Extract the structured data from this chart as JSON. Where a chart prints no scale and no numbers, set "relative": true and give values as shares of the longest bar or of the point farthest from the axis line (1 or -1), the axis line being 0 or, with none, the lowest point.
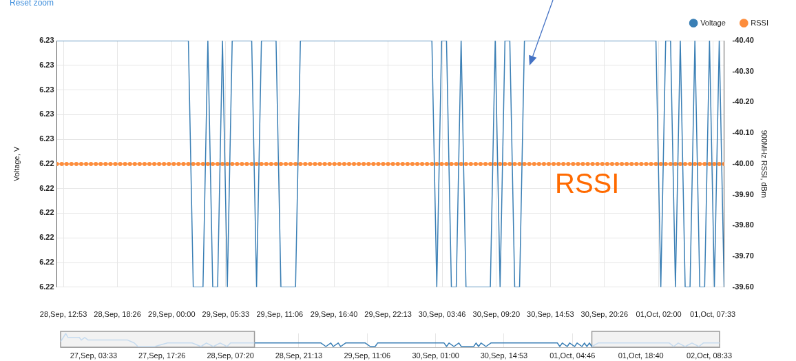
{
  "chart_data": [
    {
      "type": "line",
      "ylabel": "Voltage, V",
      "y2label": "900MHz RSSI, dBm",
      "annotations": [
        "Reset zoom",
        "RSSI"
      ],
      "xlim": [
        "--09-28T12:13",
        "--10-01T08:43"
      ],
      "xticks": [
        {
          "value": "--09-28T12:53",
          "label": "28,Sep, 12:53"
        },
        {
          "value": "--09-28T18:26",
          "label": "28,Sep, 18:26"
        },
        {
          "value": "--09-29T00:00",
          "label": "29,Sep, 00:00"
        },
        {
          "value": "--09-29T05:33",
          "label": "29,Sep, 05:33"
        },
        {
          "value": "--09-29T11:06",
          "label": "29,Sep, 11:06"
        },
        {
          "value": "--09-29T16:40",
          "label": "29,Sep, 16:40"
        },
        {
          "value": "--09-29T22:13",
          "label": "29,Sep, 22:13"
        },
        {
          "value": "--09-30T03:46",
          "label": "30,Sep, 03:46"
        },
        {
          "value": "--09-30T09:20",
          "label": "30,Sep, 09:20"
        },
        {
          "value": "--09-30T14:53",
          "label": "30,Sep, 14:53"
        },
        {
          "value": "--09-30T20:26",
          "label": "30,Sep, 20:26"
        },
        {
          "value": "--10-01T02:00",
          "label": "01,Oct, 02:00"
        },
        {
          "value": "--10-01T07:33",
          "label": "01,Oct, 07:33"
        }
      ],
      "ylim": [
        6.2244,
        6.2254
      ],
      "yticks": [
        {
          "value": 6.2244,
          "label": "6.22"
        },
        {
          "value": 6.2245,
          "label": "6.22"
        },
        {
          "value": 6.2246,
          "label": "6.22"
        },
        {
          "value": 6.2247,
          "label": "6.22"
        },
        {
          "value": 6.2248,
          "label": "6.22"
        },
        {
          "value": 6.2249,
          "label": "6.22"
        },
        {
          "value": 6.225,
          "label": "6.23"
        },
        {
          "value": 6.2251,
          "label": "6.23"
        },
        {
          "value": 6.2252,
          "label": "6.23"
        },
        {
          "value": 6.2253,
          "label": "6.23"
        },
        {
          "value": 6.2254,
          "label": "6.23"
        }
      ],
      "y2lim": [
        -39.6,
        -40.4
      ],
      "y2ticks": [
        {
          "value": -40.4,
          "label": "-40.40"
        },
        {
          "value": -40.3,
          "label": "-40.30"
        },
        {
          "value": -40.2,
          "label": "-40.20"
        },
        {
          "value": -40.1,
          "label": "-40.10"
        },
        {
          "value": -40,
          "label": "-40.00"
        },
        {
          "value": -39.9,
          "label": "-39.90"
        },
        {
          "value": -39.8,
          "label": "-39.80"
        },
        {
          "value": -39.7,
          "label": "-39.70"
        },
        {
          "value": -39.6,
          "label": "-39.60"
        }
      ],
      "grid": true,
      "legend": "top right",
      "line_style": "solid",
      "marker": "circle",
      "x": [
        "--09-28T12:13",
        "--09-28T12:43",
        "--09-28T13:13",
        "--09-28T13:43",
        "--09-28T14:13",
        "--09-28T14:43",
        "--09-28T15:13",
        "--09-28T15:43",
        "--09-28T16:13",
        "--09-28T16:43",
        "--09-28T17:13",
        "--09-28T17:43",
        "--09-28T18:13",
        "--09-28T18:43",
        "--09-28T19:13",
        "--09-28T19:43",
        "--09-28T20:13",
        "--09-28T20:43",
        "--09-28T21:13",
        "--09-28T21:43",
        "--09-28T22:13",
        "--09-28T22:43",
        "--09-28T23:13",
        "--09-28T23:43",
        "--09-29T00:13",
        "--09-29T00:43",
        "--09-29T01:13",
        "--09-29T01:43",
        "--09-29T02:13",
        "--09-29T02:43",
        "--09-29T03:13",
        "--09-29T03:43",
        "--09-29T04:13",
        "--09-29T04:43",
        "--09-29T05:13",
        "--09-29T05:43",
        "--09-29T06:13",
        "--09-29T06:43",
        "--09-29T07:13",
        "--09-29T07:43",
        "--09-29T08:13",
        "--09-29T08:43",
        "--09-29T09:13",
        "--09-29T09:43",
        "--09-29T10:13",
        "--09-29T10:43",
        "--09-29T11:13",
        "--09-29T11:43",
        "--09-29T12:13",
        "--09-29T12:43",
        "--09-29T13:13",
        "--09-29T13:43",
        "--09-29T14:13",
        "--09-29T14:43",
        "--09-29T15:13",
        "--09-29T15:43",
        "--09-29T16:13",
        "--09-29T16:43",
        "--09-29T17:13",
        "--09-29T17:43",
        "--09-29T18:13",
        "--09-29T18:43",
        "--09-29T19:13",
        "--09-29T19:43",
        "--09-29T20:13",
        "--09-29T20:43",
        "--09-29T21:13",
        "--09-29T21:43",
        "--09-29T22:13",
        "--09-29T22:43",
        "--09-29T23:13",
        "--09-29T23:43",
        "--09-30T00:13",
        "--09-30T00:43",
        "--09-30T01:13",
        "--09-30T01:43",
        "--09-30T02:13",
        "--09-30T02:43",
        "--09-30T03:13",
        "--09-30T03:43",
        "--09-30T04:13",
        "--09-30T04:43",
        "--09-30T05:13",
        "--09-30T05:43",
        "--09-30T06:13",
        "--09-30T06:43",
        "--09-30T07:13",
        "--09-30T07:43",
        "--09-30T08:13",
        "--09-30T08:43",
        "--09-30T09:13",
        "--09-30T09:43",
        "--09-30T10:13",
        "--09-30T10:43",
        "--09-30T11:13",
        "--09-30T11:43",
        "--09-30T12:13",
        "--09-30T12:43",
        "--09-30T13:13",
        "--09-30T13:43",
        "--09-30T14:13",
        "--09-30T14:43",
        "--09-30T15:13",
        "--09-30T15:43",
        "--09-30T16:13",
        "--09-30T16:43",
        "--09-30T17:13",
        "--09-30T17:43",
        "--09-30T18:13",
        "--09-30T18:43",
        "--09-30T19:13",
        "--09-30T19:43",
        "--09-30T20:13",
        "--09-30T20:43",
        "--09-30T21:13",
        "--09-30T21:43",
        "--09-30T22:13",
        "--09-30T22:43",
        "--09-30T23:13",
        "--09-30T23:43",
        "--10-01T00:13",
        "--10-01T00:43",
        "--10-01T01:13",
        "--10-01T01:43",
        "--10-01T02:13",
        "--10-01T02:43",
        "--10-01T03:13",
        "--10-01T03:43",
        "--10-01T04:13",
        "--10-01T04:43",
        "--10-01T05:13",
        "--10-01T05:43",
        "--10-01T06:13",
        "--10-01T06:43",
        "--10-01T07:13",
        "--10-01T07:43",
        "--10-01T08:13",
        "--10-01T08:43"
      ],
      "series": [
        {
          "name": "Voltage",
          "color": "#3a7fb5",
          "marker": "none",
          "values": [
            6.2254,
            6.2254,
            6.2254,
            6.2254,
            6.2254,
            6.2254,
            6.2254,
            6.2254,
            6.2254,
            6.2254,
            6.2254,
            6.2254,
            6.2254,
            6.2254,
            6.2254,
            6.2254,
            6.2254,
            6.2254,
            6.2254,
            6.2254,
            6.2254,
            6.2254,
            6.2254,
            6.2254,
            6.2254,
            6.2254,
            6.2254,
            6.2254,
            6.2244,
            6.2244,
            6.2244,
            6.2254,
            6.2244,
            6.2244,
            6.2254,
            6.2244,
            6.2254,
            6.2254,
            6.2254,
            6.2254,
            6.2254,
            6.2244,
            6.2254,
            6.2254,
            6.2254,
            6.2254,
            6.2244,
            6.2244,
            6.2244,
            6.2244,
            6.2254,
            6.2254,
            6.2254,
            6.2254,
            6.2254,
            6.2254,
            6.2254,
            6.2254,
            6.2254,
            6.2254,
            6.2254,
            6.2254,
            6.2254,
            6.2254,
            6.2254,
            6.2254,
            6.2254,
            6.2254,
            6.2254,
            6.2254,
            6.2254,
            6.2254,
            6.2254,
            6.2254,
            6.2254,
            6.2254,
            6.2254,
            6.2254,
            6.2244,
            6.2254,
            6.2254,
            6.2244,
            6.2244,
            6.2254,
            6.2244,
            6.2244,
            6.2244,
            6.2244,
            6.2244,
            6.2244,
            6.2254,
            6.2244,
            6.2254,
            6.2254,
            6.2244,
            6.2244,
            6.2254,
            6.2254,
            6.2254,
            6.2254,
            6.2254,
            6.2254,
            6.2254,
            6.2254,
            6.2254,
            6.2254,
            6.2254,
            6.2254,
            6.2254,
            6.2254,
            6.2254,
            6.2254,
            6.2254,
            6.2254,
            6.2254,
            6.2254,
            6.2254,
            6.2254,
            6.2254,
            6.2254,
            6.2254,
            6.2254,
            6.2254,
            6.2254,
            6.2244,
            6.2254,
            6.2254,
            6.2244,
            6.2254,
            6.2244,
            6.2244,
            6.2254,
            6.2244,
            6.2244,
            6.2254,
            6.2244,
            6.2254,
            6.2244
          ]
        },
        {
          "name": "RSSI",
          "color": "#fd8d3c",
          "axis": "y2",
          "values": [
            -40,
            -40,
            -40,
            -40,
            -40,
            -40,
            -40,
            -40,
            -40,
            -40,
            -40,
            -40,
            -40,
            -40,
            -40,
            -40,
            -40,
            -40,
            -40,
            -40,
            -40,
            -40,
            -40,
            -40,
            -40,
            -40,
            -40,
            -40,
            -40,
            -40,
            -40,
            -40,
            -40,
            -40,
            -40,
            -40,
            -40,
            -40,
            -40,
            -40,
            -40,
            -40,
            -40,
            -40,
            -40,
            -40,
            -40,
            -40,
            -40,
            -40,
            -40,
            -40,
            -40,
            -40,
            -40,
            -40,
            -40,
            -40,
            -40,
            -40,
            -40,
            -40,
            -40,
            -40,
            -40,
            -40,
            -40,
            -40,
            -40,
            -40,
            -40,
            -40,
            -40,
            -40,
            -40,
            -40,
            -40,
            -40,
            -40,
            -40,
            -40,
            -40,
            -40,
            -40,
            -40,
            -40,
            -40,
            -40,
            -40,
            -40,
            -40,
            -40,
            -40,
            -40,
            -40,
            -40,
            -40,
            -40,
            -40,
            -40,
            -40,
            -40,
            -40,
            -40,
            -40,
            -40,
            -40,
            -40,
            -40,
            -40,
            -40,
            -40,
            -40,
            -40,
            -40,
            -40,
            -40,
            -40,
            -40,
            -40,
            -40,
            -40,
            -40,
            -40,
            -40,
            -40,
            -40,
            -40,
            -40,
            -40,
            -40,
            -40,
            -40,
            -40,
            -40,
            -40,
            -40,
            -40
          ]
        }
      ]
    },
    {
      "type": "line",
      "relative": true,
      "grid": "x",
      "tick_labels": "x",
      "line_style": "solid",
      "bands": [
        {
          "axis": "x",
          "from": "--09-26T20:51",
          "to": "--09-28T12:13",
          "color": "#f2f2f2"
        },
        {
          "axis": "x",
          "from": "--10-01T08:43",
          "to": "--10-02T10:39",
          "color": "#f2f2f2"
        }
      ],
      "xlim": [
        "--09-26T20:51",
        "--10-02T10:39"
      ],
      "xticks": [
        {
          "value": "--09-27T03:33",
          "label": "27,Sep, 03:33"
        },
        {
          "value": "--09-27T17:26",
          "label": "27,Sep, 17:26"
        },
        {
          "value": "--09-28T07:20",
          "label": "28,Sep, 07:20"
        },
        {
          "value": "--09-28T21:13",
          "label": "28,Sep, 21:13"
        },
        {
          "value": "--09-29T11:06",
          "label": "29,Sep, 11:06"
        },
        {
          "value": "--09-30T01:00",
          "label": "30,Sep, 01:00"
        },
        {
          "value": "--09-30T14:53",
          "label": "30,Sep, 14:53"
        },
        {
          "value": "--10-01T04:46",
          "label": "01,Oct, 04:46"
        },
        {
          "value": "--10-01T18:40",
          "label": "01,Oct, 18:40"
        },
        {
          "value": "--10-02T08:33",
          "label": "02,Oct, 08:33"
        }
      ],
      "series": [
        {
          "color": "#c6dbef",
          "x": [
            "--09-26T20:51",
            "--09-26T21:54",
            "--09-26T22:21",
            "--09-27T00:39",
            "--09-27T01:03",
            "--09-27T01:45",
            "--09-27T02:27",
            "--09-27T04:07",
            "--09-27T10:27",
            "--09-27T11:48",
            "--09-27T12:33",
            "--09-27T15:57",
            "--09-27T18:33",
            "--09-27T23:33",
            "--09-28T01:21",
            "--09-28T02:27",
            "--09-28T03:51",
            "--09-28T05:15",
            "--09-28T06:39",
            "--09-28T07:21",
            "--09-28T12:13"
          ],
          "values": [
            0.4,
            1,
            0.71,
            0.71,
            0.52,
            0.71,
            0.52,
            0.52,
            0.52,
            0.31,
            0.05,
            0.05,
            0.31,
            0.31,
            0.05,
            0.31,
            0.05,
            0.31,
            0.05,
            0.31,
            0.31
          ]
        },
        {
          "color": "#3a7fb5",
          "x": [
            "--09-28T12:13",
            "--09-29T01:43",
            "--09-29T02:43",
            "--09-29T03:43",
            "--09-29T04:13",
            "--09-29T05:13",
            "--09-29T05:43",
            "--09-29T06:43",
            "--09-29T10:43",
            "--09-29T11:43",
            "--09-29T12:43",
            "--09-29T13:13",
            "--09-30T02:43",
            "--09-30T03:13",
            "--09-30T03:43",
            "--09-30T04:43",
            "--09-30T05:43",
            "--09-30T06:13",
            "--09-30T08:43",
            "--09-30T09:13",
            "--09-30T09:43",
            "--09-30T10:13",
            "--09-30T11:13",
            "--09-30T12:13",
            "--10-01T01:43",
            "--10-01T02:13",
            "--10-01T02:43",
            "--10-01T03:43",
            "--10-01T04:13",
            "--10-01T05:13",
            "--10-01T05:43",
            "--10-01T06:43",
            "--10-01T07:13",
            "--10-01T07:43",
            "--10-01T08:13",
            "--10-01T08:43"
          ],
          "values": [
            0.31,
            0.31,
            0.05,
            0.31,
            0.05,
            0.31,
            0.05,
            0.31,
            0.31,
            0.05,
            0.05,
            0.31,
            0.31,
            0.05,
            0.31,
            0.05,
            0.31,
            0.05,
            0.05,
            0.31,
            0.05,
            0.31,
            0.05,
            0.31,
            0.31,
            0.05,
            0.31,
            0.05,
            0.31,
            0.05,
            0.31,
            0.05,
            0.31,
            0.05,
            0.31,
            0.05
          ]
        },
        {
          "color": "#c6dbef",
          "x": [
            "--10-01T08:43",
            "--10-01T10:00",
            "--10-02T00:27",
            "--10-02T01:21",
            "--10-02T02:15",
            "--10-02T03:39",
            "--10-02T05:03",
            "--10-02T06:27",
            "--10-02T07:21",
            "--10-02T10:39"
          ],
          "values": [
            0.05,
            0.31,
            0.31,
            0.05,
            0.31,
            0.05,
            0.31,
            0.05,
            0.31,
            0.31
          ]
        }
      ]
    }
  ]
}
